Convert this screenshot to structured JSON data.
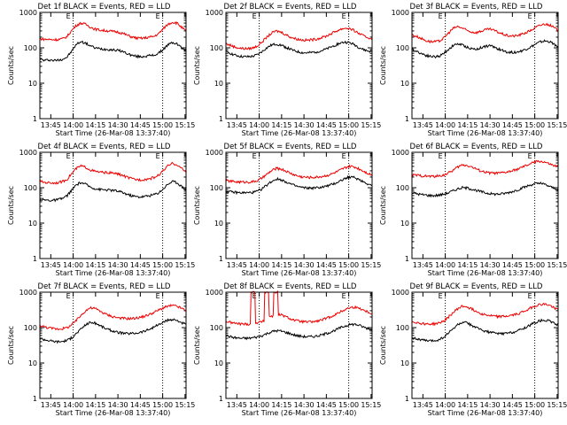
{
  "chart_data": [
    {
      "type": "line",
      "title": "Det 1f BLACK = Events, RED = LLD",
      "xlabel": "Start Time (26-Mar-08 13:37:40)",
      "ylabel": "Counts/sec",
      "marker": "E",
      "series": [
        {
          "name": "BLACK",
          "color": "#000000",
          "y": [
            48,
            44,
            46,
            44,
            45,
            48,
            55,
            80,
            125,
            150,
            135,
            115,
            100,
            95,
            92,
            90,
            88,
            85,
            80,
            70,
            62,
            58,
            56,
            58,
            60,
            62,
            70,
            90,
            120,
            140,
            130,
            100,
            80
          ]
        },
        {
          "name": "RED",
          "color": "#ee0000",
          "y": [
            180,
            175,
            172,
            170,
            172,
            180,
            210,
            310,
            430,
            500,
            460,
            390,
            340,
            320,
            310,
            300,
            290,
            280,
            260,
            230,
            205,
            190,
            185,
            190,
            200,
            210,
            250,
            340,
            460,
            530,
            500,
            380,
            290
          ]
        }
      ]
    },
    {
      "type": "line",
      "title": "Det 2f BLACK = Events, RED = LLD",
      "xlabel": "Start Time (26-Mar-08 13:37:40)",
      "ylabel": "Counts/sec",
      "marker": "E",
      "series": [
        {
          "name": "BLACK",
          "color": "#000000",
          "y": [
            78,
            70,
            62,
            58,
            56,
            56,
            58,
            65,
            80,
            100,
            120,
            128,
            120,
            105,
            92,
            82,
            76,
            72,
            72,
            74,
            78,
            84,
            92,
            105,
            120,
            135,
            145,
            140,
            125,
            105,
            90,
            82,
            78
          ]
        },
        {
          "name": "RED",
          "color": "#ee0000",
          "y": [
            130,
            118,
            105,
            98,
            95,
            95,
            100,
            115,
            150,
            200,
            260,
            300,
            280,
            240,
            205,
            185,
            172,
            165,
            165,
            170,
            180,
            195,
            215,
            250,
            290,
            330,
            360,
            350,
            310,
            260,
            220,
            195,
            180
          ]
        }
      ]
    },
    {
      "type": "line",
      "title": "Det 3f BLACK = Events, RED = LLD",
      "xlabel": "Start Time (26-Mar-08 13:37:40)",
      "ylabel": "Counts/sec",
      "marker": "E",
      "series": [
        {
          "name": "BLACK",
          "color": "#000000",
          "y": [
            90,
            80,
            70,
            62,
            58,
            56,
            58,
            70,
            90,
            115,
            130,
            120,
            105,
            95,
            90,
            100,
            110,
            115,
            105,
            92,
            82,
            76,
            74,
            76,
            82,
            92,
            105,
            125,
            145,
            155,
            150,
            130,
            105
          ]
        },
        {
          "name": "RED",
          "color": "#ee0000",
          "y": [
            230,
            210,
            185,
            160,
            150,
            148,
            155,
            190,
            260,
            350,
            400,
            360,
            310,
            280,
            270,
            290,
            320,
            340,
            310,
            270,
            240,
            220,
            215,
            220,
            240,
            270,
            310,
            370,
            430,
            470,
            450,
            380,
            300
          ]
        }
      ]
    },
    {
      "type": "line",
      "title": "Det 4f BLACK = Events, RED = LLD",
      "xlabel": "Start Time (26-Mar-08 13:37:40)",
      "ylabel": "Counts/sec",
      "marker": "E",
      "series": [
        {
          "name": "BLACK",
          "color": "#000000",
          "y": [
            48,
            45,
            44,
            44,
            46,
            50,
            60,
            85,
            120,
            140,
            125,
            105,
            95,
            90,
            88,
            86,
            84,
            80,
            74,
            66,
            60,
            56,
            55,
            57,
            60,
            64,
            72,
            92,
            125,
            150,
            140,
            110,
            85
          ]
        },
        {
          "name": "RED",
          "color": "#ee0000",
          "y": [
            150,
            142,
            138,
            136,
            140,
            150,
            175,
            250,
            350,
            410,
            380,
            320,
            290,
            275,
            270,
            265,
            258,
            245,
            225,
            200,
            180,
            170,
            168,
            172,
            180,
            195,
            225,
            300,
            410,
            480,
            450,
            350,
            270
          ]
        }
      ]
    },
    {
      "type": "line",
      "title": "Det 5f BLACK = Events, RED = LLD",
      "xlabel": "Start Time (26-Mar-08 13:37:40)",
      "ylabel": "Counts/sec",
      "marker": "E",
      "series": [
        {
          "name": "BLACK",
          "color": "#000000",
          "y": [
            80,
            76,
            74,
            72,
            72,
            72,
            74,
            80,
            95,
            120,
            150,
            175,
            170,
            150,
            130,
            115,
            105,
            100,
            98,
            98,
            100,
            104,
            110,
            120,
            135,
            155,
            180,
            200,
            195,
            175,
            150,
            130,
            115
          ]
        },
        {
          "name": "RED",
          "color": "#ee0000",
          "y": [
            160,
            152,
            148,
            145,
            145,
            145,
            148,
            160,
            190,
            240,
            300,
            350,
            340,
            300,
            260,
            230,
            210,
            200,
            196,
            196,
            200,
            208,
            220,
            240,
            270,
            310,
            360,
            400,
            390,
            350,
            300,
            260,
            230
          ]
        }
      ]
    },
    {
      "type": "line",
      "title": "Det 6f BLACK = Events, RED = LLD",
      "xlabel": "Start Time (26-Mar-08 13:37:40)",
      "ylabel": "Counts/sec",
      "marker": "E",
      "series": [
        {
          "name": "BLACK",
          "color": "#000000",
          "y": [
            72,
            68,
            64,
            62,
            60,
            60,
            62,
            66,
            72,
            82,
            92,
            100,
            98,
            92,
            85,
            78,
            72,
            68,
            66,
            66,
            68,
            72,
            78,
            86,
            96,
            108,
            120,
            130,
            132,
            125,
            110,
            98,
            90
          ]
        },
        {
          "name": "RED",
          "color": "#ee0000",
          "y": [
            230,
            225,
            218,
            212,
            210,
            210,
            215,
            230,
            260,
            310,
            380,
            440,
            430,
            390,
            340,
            300,
            275,
            262,
            258,
            258,
            265,
            280,
            300,
            330,
            370,
            420,
            480,
            540,
            560,
            530,
            470,
            420,
            390
          ]
        }
      ]
    },
    {
      "type": "line",
      "title": "Det 7f BLACK = Events, RED = LLD",
      "xlabel": "Start Time (26-Mar-08 13:37:40)",
      "ylabel": "Counts/sec",
      "marker": "E",
      "series": [
        {
          "name": "BLACK",
          "color": "#000000",
          "y": [
            50,
            46,
            43,
            41,
            40,
            41,
            44,
            52,
            68,
            90,
            120,
            140,
            135,
            118,
            100,
            88,
            80,
            74,
            70,
            68,
            68,
            70,
            74,
            80,
            90,
            104,
            120,
            140,
            160,
            170,
            160,
            140,
            120
          ]
        },
        {
          "name": "RED",
          "color": "#ee0000",
          "y": [
            115,
            105,
            98,
            94,
            92,
            94,
            100,
            120,
            160,
            220,
            300,
            360,
            350,
            300,
            255,
            225,
            205,
            192,
            184,
            180,
            180,
            185,
            195,
            210,
            235,
            270,
            310,
            360,
            400,
            420,
            400,
            350,
            300
          ]
        }
      ]
    },
    {
      "type": "line",
      "title": "Det 8f BLACK = Events, RED = LLD",
      "xlabel": "Start Time (26-Mar-08 13:37:40)",
      "ylabel": "Counts/sec",
      "marker": "E",
      "series": [
        {
          "name": "BLACK",
          "color": "#000000",
          "y": [
            60,
            55,
            52,
            50,
            50,
            50,
            52,
            55,
            60,
            68,
            76,
            82,
            80,
            74,
            68,
            62,
            58,
            56,
            55,
            56,
            58,
            62,
            68,
            76,
            86,
            98,
            110,
            120,
            125,
            118,
            105,
            95,
            88
          ]
        },
        {
          "name": "RED",
          "color": "#ee0000",
          "y": [
            150,
            140,
            132,
            128,
            126,
            126,
            1000,
            138,
            150,
            1000,
            210,
            1000,
            230,
            205,
            180,
            162,
            152,
            146,
            144,
            146,
            152,
            165,
            182,
            205,
            235,
            275,
            320,
            360,
            380,
            360,
            320,
            280,
            250
          ]
        }
      ]
    },
    {
      "type": "line",
      "title": "Det 9f BLACK = Events, RED = LLD",
      "xlabel": "Start Time (26-Mar-08 13:37:40)",
      "ylabel": "Counts/sec",
      "marker": "E",
      "series": [
        {
          "name": "BLACK",
          "color": "#000000",
          "y": [
            52,
            48,
            45,
            43,
            42,
            43,
            46,
            54,
            70,
            92,
            120,
            140,
            135,
            118,
            100,
            88,
            80,
            74,
            70,
            68,
            68,
            70,
            74,
            80,
            90,
            104,
            120,
            140,
            158,
            165,
            155,
            135,
            115
          ]
        },
        {
          "name": "RED",
          "color": "#ee0000",
          "y": [
            150,
            140,
            132,
            128,
            126,
            128,
            135,
            155,
            200,
            260,
            340,
            400,
            390,
            340,
            290,
            255,
            232,
            218,
            210,
            206,
            206,
            212,
            224,
            242,
            270,
            310,
            360,
            410,
            450,
            460,
            430,
            370,
            320
          ]
        }
      ]
    }
  ],
  "axes": {
    "x_ticks": [
      "13:45",
      "14:00",
      "14:15",
      "14:30",
      "14:45",
      "15:00",
      "15:15"
    ],
    "y_ticks": [
      "1",
      "10",
      "100",
      "1000"
    ],
    "ylim": [
      1,
      1000
    ],
    "xlim_min": [
      0,
      98
    ],
    "y_scale": "log",
    "x_tick_minutes": [
      7.33,
      22.33,
      37.33,
      52.33,
      67.33,
      82.33,
      97.33
    ],
    "dotted_lines_minutes": [
      22.33,
      82.33
    ]
  }
}
